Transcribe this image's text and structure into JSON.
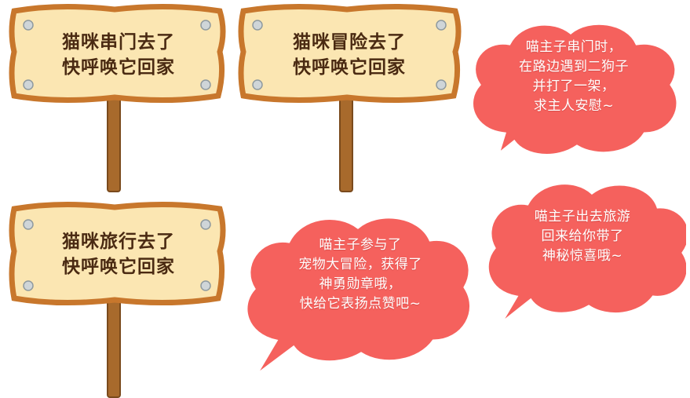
{
  "colors": {
    "board_fill": "#fbe6b2",
    "board_border": "#c8772c",
    "post": "#a86a2c",
    "bubble_fill": "#f5615d",
    "bubble_border": "#ffffff",
    "text_dark": "#4a2a12"
  },
  "signs": [
    {
      "line1": "猫咪串门去了",
      "line2": "快呼唤它回家"
    },
    {
      "line1": "猫咪冒险去了",
      "line2": "快呼唤它回家"
    },
    {
      "line1": "猫咪旅行去了",
      "line2": "快呼唤它回家"
    }
  ],
  "bubbles": [
    {
      "lines": [
        "喵主子串门时，",
        "在路边遇到二狗子",
        "并打了一架，",
        "求主人安慰~"
      ]
    },
    {
      "lines": [
        "喵主子参与了",
        "宠物大冒险，获得了",
        "神勇勋章哦，",
        "快给它表扬点赞吧~"
      ]
    },
    {
      "lines": [
        "喵主子出去旅游",
        "回来给你带了",
        "神秘惊喜哦~"
      ]
    }
  ]
}
